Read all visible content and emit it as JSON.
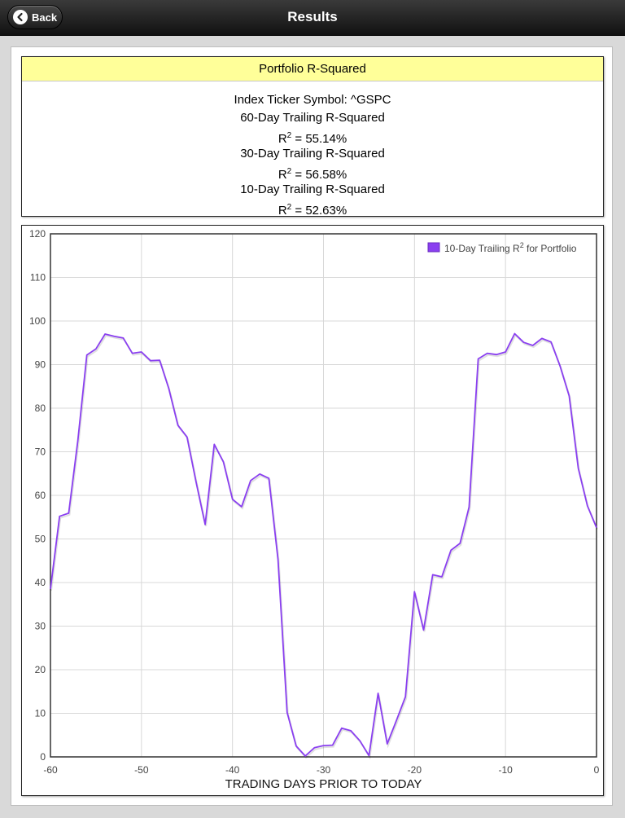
{
  "navbar": {
    "title": "Results",
    "back_label": "Back"
  },
  "summary": {
    "title": "Portfolio R-Squared",
    "index_line": "Index Ticker Symbol: ^GSPC",
    "rows": [
      {
        "label": "60-Day Trailing R-Squared",
        "value": " = 55.14%"
      },
      {
        "label": "30-Day Trailing R-Squared",
        "value": " = 56.58%"
      },
      {
        "label": "10-Day Trailing R-Squared",
        "value": " = 52.63%"
      }
    ],
    "r2_symbol": "R",
    "r2_sup": "2"
  },
  "colors": {
    "series": "#8a3ff0",
    "header_bg": "#ffff99"
  },
  "chart_data": {
    "type": "line",
    "xlabel": "TRADING DAYS PRIOR TO TODAY",
    "ylabel": "",
    "xlim": [
      -60,
      0
    ],
    "ylim": [
      0,
      120
    ],
    "x_ticks": [
      -60,
      -50,
      -40,
      -30,
      -20,
      -10,
      0
    ],
    "y_ticks": [
      0,
      10,
      20,
      30,
      40,
      50,
      60,
      70,
      80,
      90,
      100,
      110,
      120
    ],
    "grid": true,
    "legend_position": "top-right",
    "series": [
      {
        "name": "10-Day Trailing R",
        "name_sup": "2",
        "name_suffix": " for Portfolio",
        "x": [
          -60,
          -59,
          -58,
          -57,
          -56,
          -55,
          -54,
          -53,
          -52,
          -51,
          -50,
          -49,
          -48,
          -47,
          -46,
          -45,
          -44,
          -43,
          -42,
          -41,
          -40,
          -39,
          -38,
          -37,
          -36,
          -35,
          -34,
          -33,
          -32,
          -31,
          -30,
          -29,
          -28,
          -27,
          -26,
          -25,
          -24,
          -23,
          -22,
          -21,
          -20,
          -19,
          -18,
          -17,
          -16,
          -15,
          -14,
          -13,
          -12,
          -11,
          -10,
          -9,
          -8,
          -7,
          -6,
          -5,
          -4,
          -3,
          -2,
          -1,
          0
        ],
        "values": [
          38.5,
          55.2,
          55.9,
          72.5,
          92.2,
          93.6,
          97.0,
          96.5,
          96.1,
          92.6,
          92.9,
          90.9,
          91.0,
          84.5,
          76.1,
          73.4,
          63.1,
          53.3,
          71.7,
          67.7,
          59.1,
          57.4,
          63.4,
          64.9,
          63.9,
          45.3,
          10.2,
          2.5,
          0.2,
          2.1,
          2.6,
          2.7,
          6.6,
          6.0,
          3.7,
          0.3,
          14.6,
          3.0,
          8.3,
          13.8,
          37.9,
          29.1,
          41.8,
          41.3,
          47.4,
          49.0,
          57.3,
          91.3,
          92.6,
          92.3,
          92.9,
          97.1,
          95.1,
          94.4,
          96.0,
          95.2,
          89.6,
          82.8,
          66.2,
          57.6,
          52.6
        ]
      }
    ]
  }
}
